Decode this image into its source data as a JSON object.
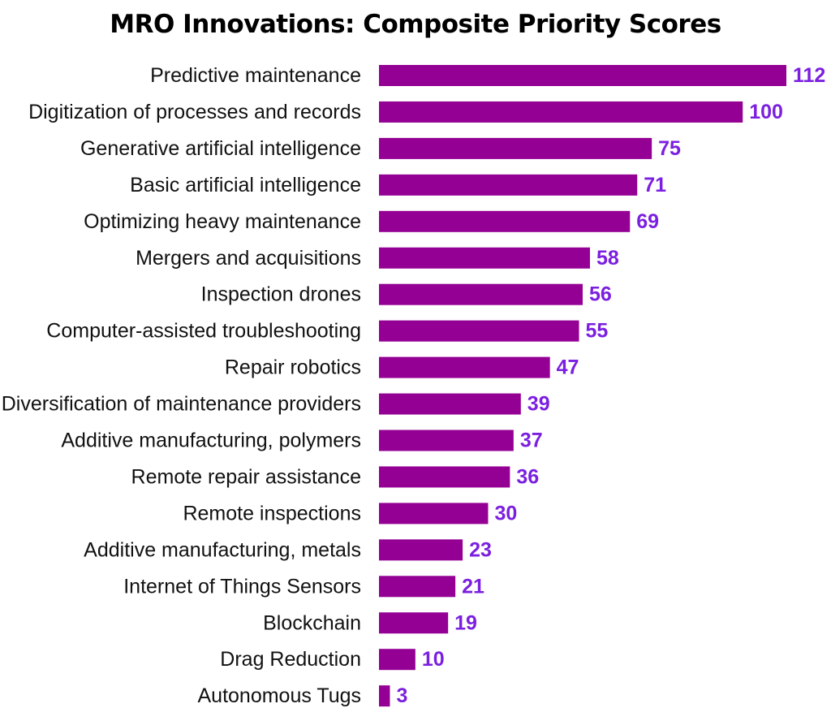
{
  "chart_data": {
    "type": "bar",
    "orientation": "horizontal",
    "title": "MRO Innovations: Composite Priority Scores",
    "xlabel": "",
    "ylabel": "",
    "xlim": [
      0,
      112
    ],
    "grid": false,
    "legend": "none",
    "categories": [
      "Predictive maintenance",
      "Digitization of processes and records",
      "Generative artificial intelligence",
      "Basic artificial intelligence",
      "Optimizing heavy maintenance",
      "Mergers and acquisitions",
      "Inspection drones",
      "Computer-assisted troubleshooting",
      "Repair robotics",
      "Diversification of maintenance providers",
      "Additive manufacturing, polymers",
      "Remote repair assistance",
      "Remote inspections",
      "Additive manufacturing, metals",
      "Internet of Things Sensors",
      "Blockchain",
      "Drag Reduction",
      "Autonomous Tugs"
    ],
    "values": [
      112,
      100,
      75,
      71,
      69,
      58,
      56,
      55,
      47,
      39,
      37,
      36,
      30,
      23,
      21,
      19,
      10,
      3
    ]
  },
  "colors": {
    "bar": "#940094",
    "value_label": "#7b1fe0",
    "category_label": "#111111",
    "title": "#000000"
  }
}
